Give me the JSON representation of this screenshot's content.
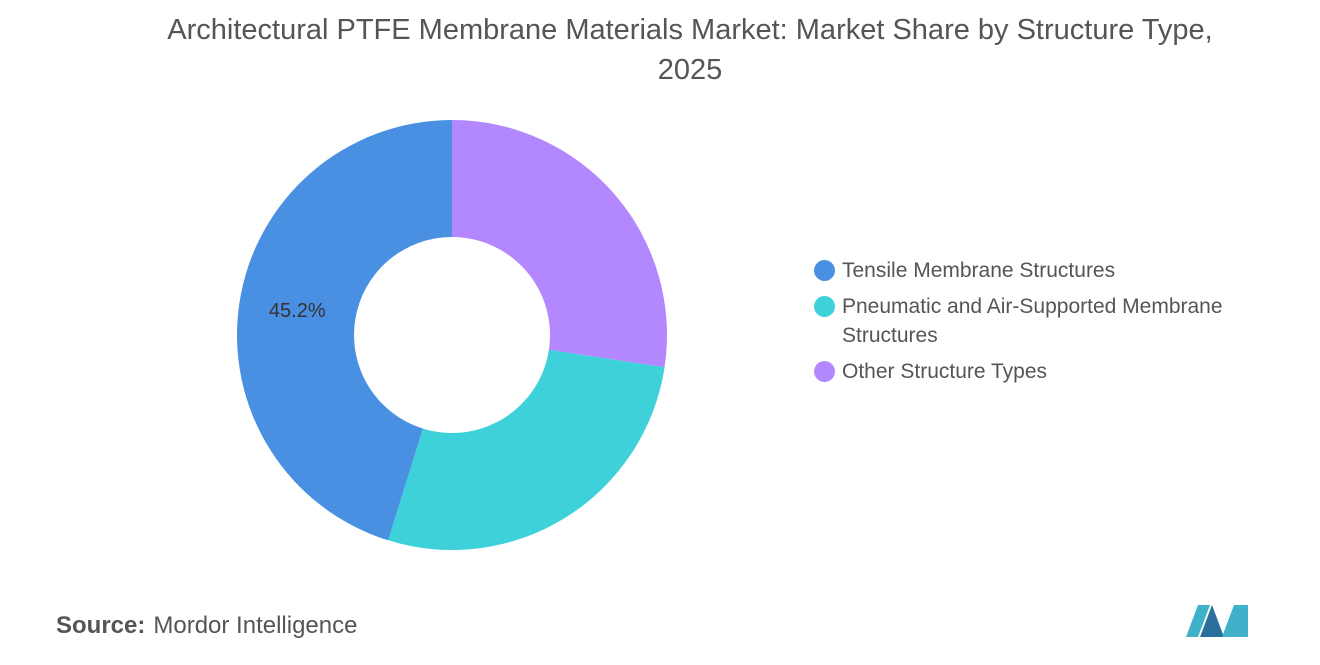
{
  "chart_data": {
    "type": "donut",
    "title": "Architectural PTFE Membrane Materials Market: Market Share by Structure Type, 2025",
    "categories": [
      "Tensile Membrane Structures",
      "Pneumatic and Air-Supported Membrane Structures",
      "Other Structure Types"
    ],
    "values": [
      45.2,
      27.4,
      27.4
    ],
    "value_labels": [
      "45.2%",
      null,
      null
    ],
    "colors": [
      "#4a90e2",
      "#3fd1da",
      "#b388ff"
    ],
    "source_label": "Source:",
    "source": "Mordor Intelligence"
  }
}
